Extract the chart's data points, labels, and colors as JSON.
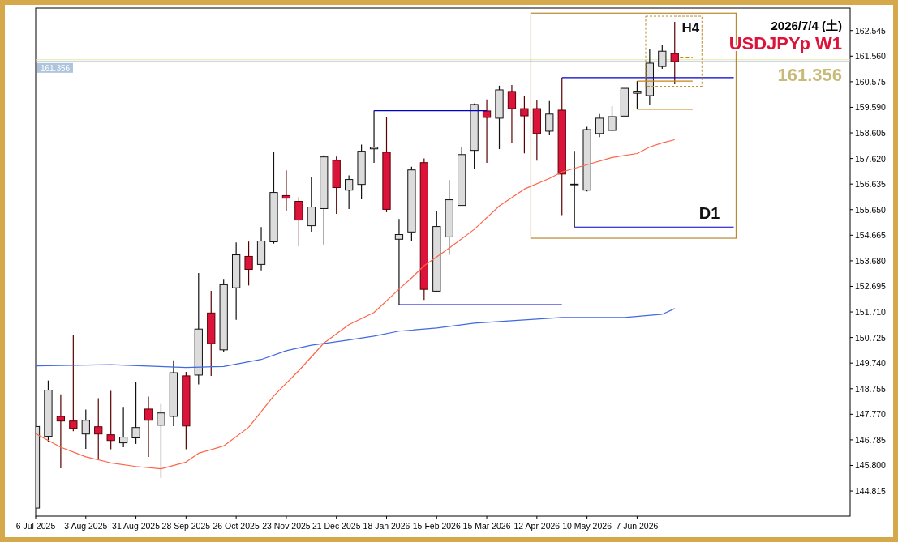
{
  "chart_data": {
    "type": "candlestick",
    "title": "USDJPYp W1",
    "subtitle": "2026/7/4 (土)",
    "annotations": [
      "161.356",
      "D1",
      "H4"
    ],
    "x": [
      "2025-07-06",
      "2025-07-13",
      "2025-07-20",
      "2025-07-27",
      "2025-08-03",
      "2025-08-10",
      "2025-08-17",
      "2025-08-24",
      "2025-08-31",
      "2025-09-07",
      "2025-09-14",
      "2025-09-21",
      "2025-09-28",
      "2025-10-05",
      "2025-10-12",
      "2025-10-19",
      "2025-10-26",
      "2025-11-02",
      "2025-11-09",
      "2025-11-16",
      "2025-11-23",
      "2025-11-30",
      "2025-12-07",
      "2025-12-14",
      "2025-12-21",
      "2025-12-28",
      "2026-01-04",
      "2026-01-11",
      "2026-01-18",
      "2026-01-25",
      "2026-02-01",
      "2026-02-08",
      "2026-02-15",
      "2026-02-22",
      "2026-03-01",
      "2026-03-08",
      "2026-03-15",
      "2026-03-22",
      "2026-03-29",
      "2026-04-05",
      "2026-04-12",
      "2026-04-19",
      "2026-04-26",
      "2026-05-03",
      "2026-05-10",
      "2026-05-17",
      "2026-05-24",
      "2026-05-31",
      "2026-06-07",
      "2026-06-14",
      "2026-06-21",
      "2026-06-28"
    ],
    "ohlc": [
      [
        144.16,
        147.3,
        144.16,
        147.3
      ],
      [
        146.92,
        149.07,
        146.69,
        148.7
      ],
      [
        147.69,
        148.54,
        145.69,
        147.51
      ],
      [
        147.51,
        150.81,
        147.12,
        147.23
      ],
      [
        147.01,
        147.95,
        146.44,
        147.54
      ],
      [
        147.29,
        148.39,
        146.06,
        147.01
      ],
      [
        146.98,
        148.67,
        146.42,
        146.76
      ],
      [
        146.67,
        148.05,
        146.5,
        146.89
      ],
      [
        146.86,
        149.01,
        146.63,
        147.26
      ],
      [
        147.97,
        148.45,
        146.13,
        147.54
      ],
      [
        147.35,
        148.17,
        145.32,
        147.82
      ],
      [
        147.69,
        149.85,
        147.31,
        149.37
      ],
      [
        149.25,
        149.4,
        146.42,
        147.32
      ],
      [
        149.28,
        153.21,
        148.92,
        151.05
      ],
      [
        151.67,
        152.52,
        149.25,
        150.49
      ],
      [
        150.25,
        152.98,
        150.15,
        152.76
      ],
      [
        152.64,
        154.39,
        151.41,
        153.91
      ],
      [
        153.85,
        154.42,
        152.73,
        153.35
      ],
      [
        153.54,
        154.98,
        153.31,
        154.44
      ],
      [
        154.41,
        157.88,
        154.34,
        156.31
      ],
      [
        156.19,
        157.16,
        155.58,
        156.09
      ],
      [
        155.97,
        156.13,
        154.24,
        155.25
      ],
      [
        155.03,
        156.91,
        154.8,
        155.75
      ],
      [
        155.69,
        157.75,
        154.31,
        157.68
      ],
      [
        157.55,
        157.69,
        155.49,
        156.5
      ],
      [
        156.4,
        156.97,
        155.67,
        156.81
      ],
      [
        156.62,
        158.15,
        156.05,
        157.9
      ],
      [
        157.99,
        159.46,
        157.45,
        158.05
      ],
      [
        157.86,
        159.21,
        155.55,
        155.66
      ],
      [
        154.51,
        155.29,
        151.99,
        154.69
      ],
      [
        154.79,
        157.3,
        154.46,
        157.18
      ],
      [
        157.46,
        157.62,
        152.17,
        152.58
      ],
      [
        152.51,
        155.6,
        152.48,
        155.0
      ],
      [
        154.6,
        156.79,
        153.91,
        156.03
      ],
      [
        155.81,
        158.06,
        155.81,
        157.77
      ],
      [
        157.93,
        159.74,
        157.23,
        159.7
      ],
      [
        159.45,
        159.89,
        157.45,
        159.2
      ],
      [
        159.17,
        160.42,
        157.98,
        160.26
      ],
      [
        160.2,
        160.45,
        158.22,
        159.54
      ],
      [
        159.54,
        160.02,
        157.82,
        159.26
      ],
      [
        159.54,
        159.86,
        157.54,
        158.58
      ],
      [
        158.67,
        159.83,
        158.51,
        159.33
      ],
      [
        159.48,
        160.73,
        155.44,
        157.02
      ],
      [
        156.63,
        157.91,
        154.98,
        156.63
      ],
      [
        156.4,
        158.84,
        156.35,
        158.73
      ],
      [
        158.58,
        159.33,
        158.44,
        159.17
      ],
      [
        158.7,
        159.64,
        158.66,
        159.23
      ],
      [
        159.25,
        160.32,
        159.25,
        160.32
      ],
      [
        160.13,
        160.6,
        159.51,
        160.21
      ],
      [
        160.04,
        161.82,
        159.7,
        161.29
      ],
      [
        161.16,
        161.98,
        161.07,
        161.75
      ],
      [
        161.66,
        162.88,
        160.48,
        161.35
      ]
    ],
    "colors": [
      "#dcdcdc",
      "#dcdcdc",
      "#dc143c",
      "#dc143c",
      "#dcdcdc",
      "#dc143c",
      "#dc143c",
      "#dcdcdc",
      "#dcdcdc",
      "#dc143c",
      "#dcdcdc",
      "#dcdcdc",
      "#dc143c",
      "#dcdcdc",
      "#dc143c",
      "#dcdcdc",
      "#dcdcdc",
      "#dc143c",
      "#dcdcdc",
      "#dcdcdc",
      "#dc143c",
      "#dc143c",
      "#dcdcdc",
      "#dcdcdc",
      "#dc143c",
      "#dcdcdc",
      "#dcdcdc",
      "#dcdcdc",
      "#dc143c",
      "#dcdcdc",
      "#dcdcdc",
      "#dc143c",
      "#dcdcdc",
      "#dcdcdc",
      "#dcdcdc",
      "#dcdcdc",
      "#dc143c",
      "#dcdcdc",
      "#dc143c",
      "#dc143c",
      "#dc143c",
      "#dcdcdc",
      "#dc143c",
      "#dcdcdc",
      "#dcdcdc",
      "#dcdcdc",
      "#dcdcdc",
      "#dcdcdc",
      "#dcdcdc",
      "#dcdcdc",
      "#dcdcdc",
      "#dc143c"
    ],
    "series": [
      {
        "type": "line",
        "color": "#ff6347",
        "x": [
          "2025-07-06",
          "2025-07-20",
          "2025-08-03",
          "2025-08-17",
          "2025-08-31",
          "2025-09-14",
          "2025-09-28",
          "2025-10-05",
          "2025-10-19",
          "2025-11-02",
          "2025-11-16",
          "2025-11-30",
          "2025-12-14",
          "2025-12-28",
          "2026-01-11",
          "2026-01-25",
          "2026-02-01",
          "2026-02-08",
          "2026-02-22",
          "2026-03-08",
          "2026-03-22",
          "2026-04-05",
          "2026-04-19",
          "2026-04-26",
          "2026-05-10",
          "2026-05-24",
          "2026-06-07",
          "2026-06-14",
          "2026-06-21",
          "2026-06-28"
        ],
        "values": [
          147.02,
          146.5,
          146.13,
          145.9,
          145.76,
          145.67,
          145.93,
          146.27,
          146.55,
          147.27,
          148.48,
          149.45,
          150.51,
          151.22,
          151.69,
          152.59,
          153.02,
          153.49,
          154.17,
          154.89,
          155.79,
          156.44,
          156.85,
          157.1,
          157.38,
          157.66,
          157.81,
          158.06,
          158.22,
          158.34
        ]
      },
      {
        "type": "line",
        "color": "#4169e1",
        "x": [
          "2025-07-06",
          "2025-08-17",
          "2025-09-28",
          "2025-10-19",
          "2025-11-09",
          "2025-11-23",
          "2025-12-07",
          "2025-12-28",
          "2026-01-11",
          "2026-01-25",
          "2026-02-15",
          "2026-03-08",
          "2026-03-22",
          "2026-04-26",
          "2026-05-31",
          "2026-06-21",
          "2026-06-28"
        ],
        "values": [
          149.63,
          149.68,
          149.57,
          149.61,
          149.88,
          150.22,
          150.43,
          150.63,
          150.78,
          150.97,
          151.09,
          151.28,
          151.34,
          151.5,
          151.5,
          151.62,
          151.84
        ]
      },
      {
        "type": "line",
        "color": "#0000cd",
        "x": [
          "2026-01-11",
          "2026-03-15"
        ],
        "values": [
          159.46,
          159.46
        ]
      },
      {
        "type": "line",
        "color": "#0000cd",
        "x": [
          "2026-01-25",
          "2026-04-26"
        ],
        "values": [
          151.99,
          151.99
        ]
      },
      {
        "type": "line",
        "color": "#0000cd",
        "x": [
          "2026-04-26",
          "2026-07-31"
        ],
        "values": [
          160.73,
          160.73
        ]
      },
      {
        "type": "line",
        "color": "#0000cd",
        "x": [
          "2026-05-03",
          "2026-07-31"
        ],
        "values": [
          154.98,
          154.98
        ]
      },
      {
        "type": "line",
        "color": "#c8860b",
        "x": [
          "2026-06-07",
          "2026-07-08"
        ],
        "values": [
          160.6,
          160.6
        ]
      },
      {
        "type": "line",
        "color": "#c8860b",
        "x": [
          "2026-06-07",
          "2026-07-08"
        ],
        "values": [
          159.51,
          159.51
        ]
      },
      {
        "type": "line",
        "color": "#c8860b",
        "line_style": "dashed",
        "x": [
          "2026-07-01",
          "2026-07-08"
        ],
        "values": [
          161.52,
          161.52
        ]
      }
    ],
    "ref_lines": [
      {
        "axis": "y",
        "value": 161.42,
        "color": "#e6e6a0"
      },
      {
        "axis": "y",
        "value": 161.356,
        "label": "161.356",
        "color": "#b0c4de"
      }
    ],
    "xlim": [
      "2025-07-06",
      "2026-10-04"
    ],
    "xticks": [
      {
        "value": "2025-07-06",
        "label": "6 Jul 2025"
      },
      {
        "value": "2025-08-03",
        "label": "3 Aug 2025"
      },
      {
        "value": "2025-08-31",
        "label": "31 Aug 2025"
      },
      {
        "value": "2025-09-28",
        "label": "28 Sep 2025"
      },
      {
        "value": "2025-10-26",
        "label": "26 Oct 2025"
      },
      {
        "value": "2025-11-23",
        "label": "23 Nov 2025"
      },
      {
        "value": "2025-12-21",
        "label": "21 Dec 2025"
      },
      {
        "value": "2026-01-18",
        "label": "18 Jan 2026"
      },
      {
        "value": "2026-02-15",
        "label": "15 Feb 2026"
      },
      {
        "value": "2026-03-15",
        "label": "15 Mar 2026"
      },
      {
        "value": "2026-04-12",
        "label": "12 Apr 2026"
      },
      {
        "value": "2026-05-10",
        "label": "10 May 2026"
      },
      {
        "value": "2026-06-07",
        "label": "7 Jun 2026"
      }
    ],
    "ylim": [
      143.85,
      163.41
    ],
    "yticks": [
      {
        "value": 162.545,
        "label": "162.545"
      },
      {
        "value": 161.56,
        "label": "161.560"
      },
      {
        "value": 160.575,
        "label": "160.575"
      },
      {
        "value": 159.59,
        "label": "159.590"
      },
      {
        "value": 158.605,
        "label": "158.605"
      },
      {
        "value": 157.62,
        "label": "157.620"
      },
      {
        "value": 156.635,
        "label": "156.635"
      },
      {
        "value": 155.65,
        "label": "155.650"
      },
      {
        "value": 154.665,
        "label": "154.665"
      },
      {
        "value": 153.68,
        "label": "153.680"
      },
      {
        "value": 152.695,
        "label": "152.695"
      },
      {
        "value": 151.71,
        "label": "151.710"
      },
      {
        "value": 150.725,
        "label": "150.725"
      },
      {
        "value": 149.74,
        "label": "149.740"
      },
      {
        "value": 148.755,
        "label": "148.755"
      },
      {
        "value": 147.77,
        "label": "147.770"
      },
      {
        "value": 146.785,
        "label": "146.785"
      },
      {
        "value": 145.8,
        "label": "145.800"
      },
      {
        "value": 144.815,
        "label": "144.815"
      }
    ],
    "grid": false
  }
}
